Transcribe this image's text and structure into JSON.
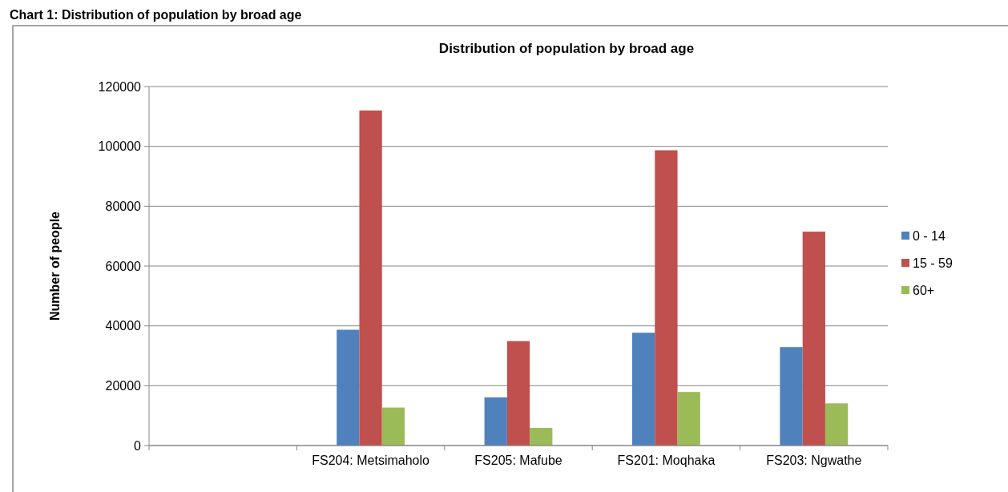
{
  "chart_data": {
    "type": "bar",
    "title": "Distribution of population  by broad age",
    "ylabel": "Number of people",
    "annotations": [
      "Chart 1: Distribution of population by broad age"
    ],
    "categories": [
      null,
      "FS204: Metsimaholo",
      "FS205: Mafube",
      "FS201: Moqhaka",
      "FS203: Ngwathe"
    ],
    "series": [
      {
        "name": "0 - 14",
        "color": "#4f81bd",
        "values": [
          null,
          38700,
          16100,
          37700,
          32900
        ]
      },
      {
        "name": "15 - 59",
        "color": "#c0504d",
        "values": [
          null,
          112000,
          34900,
          98700,
          71500
        ]
      },
      {
        "name": "60+",
        "color": "#9bbb59",
        "values": [
          null,
          12700,
          5900,
          17900,
          14100
        ]
      }
    ],
    "ylim": [
      0,
      120000
    ],
    "yticks": [
      0,
      20000,
      40000,
      60000,
      80000,
      100000,
      120000
    ],
    "grid": "y",
    "legend": "right"
  }
}
